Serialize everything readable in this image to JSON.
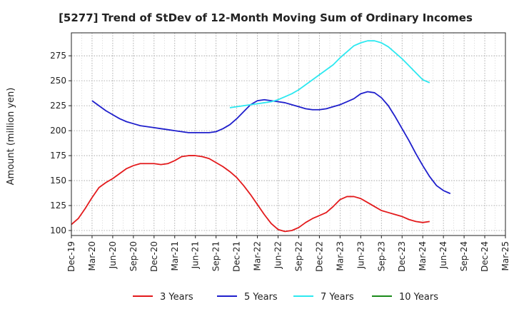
{
  "chart_data": {
    "type": "line",
    "title": "[5277]  Trend of StDev of 12-Month Moving Sum of Ordinary Incomes",
    "xlabel": "",
    "ylabel": "Amount (million yen)",
    "ylim": [
      95,
      298
    ],
    "yticks": [
      100,
      125,
      150,
      175,
      200,
      225,
      250,
      275
    ],
    "x_tick_labels": [
      "Dec-19",
      "Mar-20",
      "Jun-20",
      "Sep-20",
      "Dec-20",
      "Mar-21",
      "Jun-21",
      "Sep-21",
      "Dec-21",
      "Mar-22",
      "Jun-22",
      "Sep-22",
      "Dec-22",
      "Mar-23",
      "Jun-23",
      "Sep-23",
      "Dec-23",
      "Mar-24",
      "Jun-24",
      "Sep-24",
      "Dec-24",
      "Mar-25"
    ],
    "grid": true,
    "legend_position": "bottom",
    "series": [
      {
        "name": "3 Years",
        "color": "#e31a1c",
        "start_index": 0,
        "values": [
          106,
          112,
          122,
          133,
          143,
          148,
          152,
          157,
          162,
          165,
          167,
          167,
          167,
          166,
          167,
          170,
          174,
          175,
          175,
          174,
          172,
          168,
          164,
          159,
          153,
          145,
          136,
          126,
          116,
          107,
          101,
          99,
          100,
          103,
          108,
          112,
          115,
          118,
          124,
          131,
          134,
          134,
          132,
          128,
          124,
          120,
          118,
          116,
          114,
          111,
          109,
          108,
          109
        ]
      },
      {
        "name": "5 Years",
        "color": "#1f1fcc",
        "start_index": 3,
        "values": [
          230,
          225,
          220,
          216,
          212,
          209,
          207,
          205,
          204,
          203,
          202,
          201,
          200,
          199,
          198,
          198,
          198,
          198,
          199,
          202,
          206,
          212,
          219,
          226,
          230,
          231,
          230,
          229,
          228,
          226,
          224,
          222,
          221,
          221,
          222,
          224,
          226,
          229,
          232,
          237,
          239,
          238,
          233,
          225,
          214,
          202,
          190,
          177,
          165,
          154,
          145,
          140,
          137
        ]
      },
      {
        "name": "7 Years",
        "color": "#2de8f0",
        "start_index": 23,
        "values": [
          223,
          224,
          225,
          226,
          227,
          228,
          229,
          231,
          234,
          237,
          241,
          246,
          251,
          256,
          261,
          266,
          273,
          279,
          285,
          288,
          290,
          290,
          288,
          284,
          278,
          272,
          265,
          258,
          251,
          248
        ]
      },
      {
        "name": "10 Years",
        "color": "#1a8a1a",
        "start_index": 0,
        "values": []
      }
    ]
  }
}
